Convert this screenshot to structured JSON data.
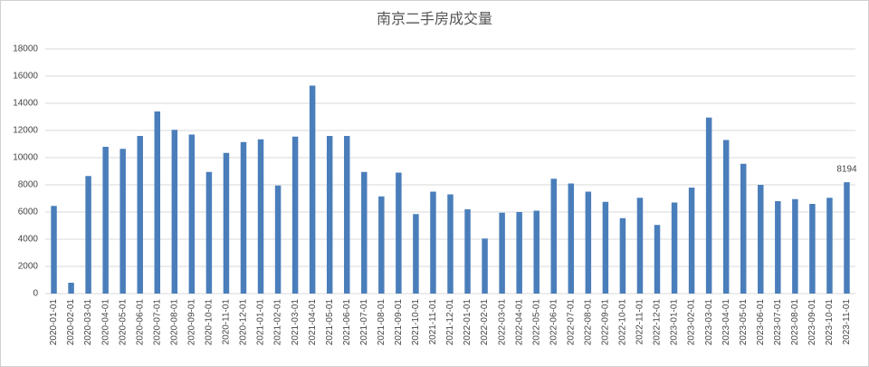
{
  "chart_data": {
    "type": "bar",
    "title": "南京二手房成交量",
    "categories": [
      "2020-01-01",
      "2020-02-01",
      "2020-03-01",
      "2020-04-01",
      "2020-05-01",
      "2020-06-01",
      "2020-07-01",
      "2020-08-01",
      "2020-09-01",
      "2020-10-01",
      "2020-11-01",
      "2020-12-01",
      "2021-01-01",
      "2021-02-01",
      "2021-03-01",
      "2021-04-01",
      "2021-05-01",
      "2021-06-01",
      "2021-07-01",
      "2021-08-01",
      "2021-09-01",
      "2021-10-01",
      "2021-11-01",
      "2021-12-01",
      "2022-01-01",
      "2022-02-01",
      "2022-03-01",
      "2022-04-01",
      "2022-05-01",
      "2022-06-01",
      "2022-07-01",
      "2022-08-01",
      "2022-09-01",
      "2022-10-01",
      "2022-11-01",
      "2022-12-01",
      "2023-01-01",
      "2023-02-01",
      "2023-03-01",
      "2023-04-01",
      "2023-05-01",
      "2023-06-01",
      "2023-07-01",
      "2023-08-01",
      "2023-09-01",
      "2023-10-01",
      "2023-11-01"
    ],
    "values": [
      6450,
      800,
      8650,
      10800,
      10650,
      11600,
      13400,
      12050,
      11700,
      8950,
      10350,
      11150,
      11350,
      7950,
      11550,
      15300,
      11600,
      11600,
      8950,
      7150,
      8900,
      5850,
      7500,
      7300,
      6200,
      4050,
      5950,
      6000,
      6100,
      8450,
      8100,
      7500,
      6750,
      5550,
      7050,
      5050,
      6700,
      7800,
      12950,
      11300,
      9550,
      8000,
      6800,
      6950,
      6600,
      7050,
      8194
    ],
    "value_labels": [
      null,
      null,
      null,
      null,
      null,
      null,
      null,
      null,
      null,
      null,
      null,
      null,
      null,
      null,
      null,
      null,
      null,
      null,
      null,
      null,
      null,
      null,
      null,
      null,
      null,
      null,
      null,
      null,
      null,
      null,
      null,
      null,
      null,
      null,
      null,
      null,
      null,
      null,
      null,
      null,
      null,
      null,
      null,
      null,
      null,
      null,
      "8194"
    ],
    "color": "#4a7ebb",
    "ylim": [
      0,
      18000
    ],
    "yticks": [
      0,
      2000,
      4000,
      6000,
      8000,
      10000,
      12000,
      14000,
      16000,
      18000
    ],
    "grid": true
  }
}
